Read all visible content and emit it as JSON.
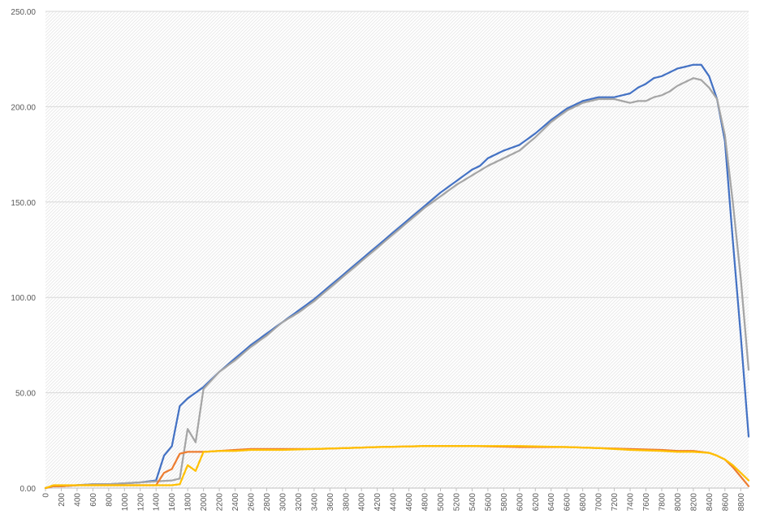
{
  "chart_data": {
    "type": "line",
    "title": "",
    "xlabel": "",
    "ylabel": "",
    "xlim": [
      0,
      8900
    ],
    "ylim": [
      0,
      250
    ],
    "x_ticks": [
      0,
      200,
      400,
      600,
      800,
      1000,
      1200,
      1400,
      1600,
      1800,
      2000,
      2200,
      2400,
      2600,
      2800,
      3000,
      3200,
      3400,
      3600,
      3800,
      4000,
      4200,
      4400,
      4600,
      4800,
      5000,
      5200,
      5400,
      5600,
      5800,
      6000,
      6200,
      6400,
      6600,
      6800,
      7000,
      7200,
      7400,
      7600,
      7800,
      8000,
      8200,
      8400,
      8600,
      8800
    ],
    "y_ticks": [
      "0.00",
      "50.00",
      "100.00",
      "150.00",
      "200.00",
      "250.00"
    ],
    "y_tick_values": [
      0,
      50,
      100,
      150,
      200,
      250
    ],
    "grid": true,
    "legend": "none",
    "series": [
      {
        "color": "#4472C4",
        "x": [
          0,
          100,
          200,
          400,
          600,
          800,
          1000,
          1200,
          1400,
          1500,
          1600,
          1700,
          1800,
          1900,
          2000,
          2200,
          2400,
          2600,
          2800,
          3000,
          3200,
          3400,
          3600,
          3800,
          4000,
          4200,
          4400,
          4600,
          4800,
          5000,
          5200,
          5400,
          5500,
          5600,
          5800,
          6000,
          6200,
          6400,
          6600,
          6800,
          7000,
          7200,
          7400,
          7500,
          7600,
          7700,
          7800,
          7900,
          8000,
          8100,
          8200,
          8300,
          8400,
          8500,
          8600,
          8700,
          8800,
          8900
        ],
        "values": [
          0,
          1,
          1,
          1.5,
          2,
          2,
          2.5,
          3,
          4,
          17,
          22,
          43,
          47,
          50,
          53,
          61,
          68,
          75,
          81,
          87,
          93,
          99,
          106,
          113,
          120,
          127,
          134,
          141,
          148,
          155,
          161,
          167,
          169,
          173,
          177,
          180,
          186,
          193,
          199,
          203,
          205,
          205,
          207,
          210,
          212,
          215,
          216,
          218,
          220,
          221,
          222,
          222,
          216,
          204,
          182,
          130,
          80,
          27
        ]
      },
      {
        "color": "#A5A5A5",
        "x": [
          0,
          100,
          200,
          400,
          600,
          800,
          1000,
          1200,
          1400,
          1600,
          1700,
          1800,
          1900,
          2000,
          2200,
          2400,
          2600,
          2800,
          3000,
          3200,
          3400,
          3600,
          3800,
          4000,
          4200,
          4400,
          4600,
          4800,
          5000,
          5200,
          5400,
          5600,
          5800,
          6000,
          6200,
          6400,
          6600,
          6800,
          7000,
          7200,
          7300,
          7400,
          7500,
          7600,
          7700,
          7800,
          7900,
          8000,
          8100,
          8200,
          8300,
          8400,
          8500,
          8600,
          8700,
          8800,
          8900
        ],
        "values": [
          0,
          1,
          1,
          1.5,
          2,
          2,
          2.5,
          3,
          3.5,
          4,
          5,
          31,
          24,
          52,
          61,
          67,
          74,
          80,
          87,
          92,
          98,
          105,
          112,
          119,
          126,
          133,
          140,
          147,
          153,
          159,
          164,
          169,
          173,
          177,
          184,
          192,
          198,
          202,
          204,
          204,
          203,
          202,
          203,
          203,
          205,
          206,
          208,
          211,
          213,
          215,
          214,
          210,
          204,
          185,
          150,
          110,
          62
        ]
      },
      {
        "color": "#ED7D31",
        "x": [
          0,
          100,
          200,
          400,
          600,
          800,
          1000,
          1200,
          1400,
          1500,
          1600,
          1700,
          1800,
          1900,
          2000,
          2200,
          2400,
          2600,
          3000,
          3400,
          3800,
          4200,
          4800,
          5400,
          6000,
          6600,
          7000,
          7400,
          7800,
          8000,
          8200,
          8400,
          8500,
          8600,
          8700,
          8800,
          8900
        ],
        "values": [
          0,
          1,
          1,
          1.5,
          1.5,
          1.5,
          1.5,
          1.5,
          1.5,
          8,
          10,
          18,
          19,
          19,
          19,
          19.5,
          20,
          20.5,
          20.5,
          20.5,
          21,
          21.5,
          22,
          22,
          21.5,
          21.5,
          21,
          20.5,
          20,
          19.5,
          19.5,
          18.5,
          17,
          15,
          11,
          6,
          1
        ]
      },
      {
        "color": "#FFC000",
        "x": [
          0,
          100,
          200,
          400,
          600,
          800,
          1000,
          1200,
          1400,
          1600,
          1700,
          1800,
          1900,
          2000,
          2200,
          2400,
          2600,
          3000,
          3400,
          3800,
          4200,
          4800,
          5400,
          6000,
          6600,
          7000,
          7400,
          7800,
          8000,
          8200,
          8400,
          8500,
          8600,
          8700,
          8800,
          8900
        ],
        "values": [
          0,
          1.5,
          1.5,
          1.5,
          1.5,
          1.5,
          1.5,
          1.5,
          1.5,
          1.5,
          2,
          12,
          9,
          19,
          19.5,
          19.5,
          20,
          20,
          20.5,
          21,
          21.5,
          22,
          22,
          22,
          21.5,
          21,
          20,
          19.5,
          19,
          19,
          18.5,
          17,
          15,
          12,
          8,
          4
        ]
      }
    ]
  }
}
